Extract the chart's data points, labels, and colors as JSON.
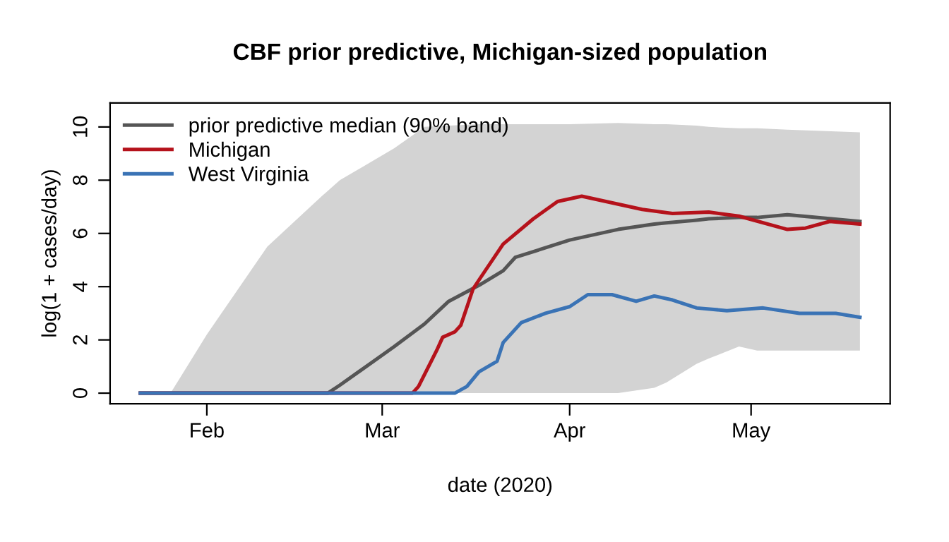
{
  "chart_data": {
    "type": "line",
    "title": "CBF prior predictive, Michigan-sized population",
    "xlabel": "date (2020)",
    "ylabel": "log(1 + cases/day)",
    "xlim": [
      "2020-01-16",
      "2020-05-24"
    ],
    "xticks": [
      {
        "value": "2020-02-01",
        "label": "Feb"
      },
      {
        "value": "2020-03-01",
        "label": "Mar"
      },
      {
        "value": "2020-04-01",
        "label": "Apr"
      },
      {
        "value": "2020-05-01",
        "label": "May"
      }
    ],
    "ylim": [
      -0.4,
      10.9
    ],
    "yticks": [
      0,
      2,
      4,
      6,
      8,
      10
    ],
    "grid": false,
    "legend": "top left",
    "series": [
      {
        "name": "prior predictive median (90% band)",
        "color": "#555555",
        "x": [
          "2020-01-21",
          "2020-01-26",
          "2020-02-01",
          "2020-02-11",
          "2020-02-20",
          "2020-02-21",
          "2020-02-23",
          "2020-03-03",
          "2020-03-08",
          "2020-03-12",
          "2020-03-17",
          "2020-03-21",
          "2020-03-23",
          "2020-04-01",
          "2020-04-09",
          "2020-04-15",
          "2020-04-17",
          "2020-04-22",
          "2020-04-24",
          "2020-04-29",
          "2020-05-02",
          "2020-05-07",
          "2020-05-19"
        ],
        "values": [
          0,
          0,
          0,
          0,
          0,
          0,
          0.3,
          1.75,
          2.6,
          3.45,
          4.05,
          4.6,
          5.1,
          5.75,
          6.15,
          6.35,
          6.4,
          6.5,
          6.55,
          6.6,
          6.6,
          6.7,
          6.45
        ],
        "lower": [
          0,
          0,
          0,
          0,
          0,
          0,
          0,
          0,
          0,
          0,
          0,
          0,
          0,
          0,
          0,
          0.2,
          0.4,
          1.1,
          1.3,
          1.75,
          1.6,
          1.6,
          1.6
        ],
        "upper": [
          0,
          0,
          2.2,
          5.5,
          7.4,
          7.6,
          8.0,
          9.2,
          10.0,
          10.05,
          10.1,
          10.1,
          10.1,
          10.1,
          10.15,
          10.1,
          10.1,
          10.05,
          10.0,
          9.95,
          9.95,
          9.9,
          9.8
        ]
      },
      {
        "name": "Michigan",
        "color": "#b5121b",
        "x": [
          "2020-01-21",
          "2020-03-06",
          "2020-03-07",
          "2020-03-10",
          "2020-03-11",
          "2020-03-13",
          "2020-03-14",
          "2020-03-16",
          "2020-03-17",
          "2020-03-21",
          "2020-03-26",
          "2020-03-30",
          "2020-04-03",
          "2020-04-09",
          "2020-04-13",
          "2020-04-18",
          "2020-04-24",
          "2020-04-29",
          "2020-05-07",
          "2020-05-10",
          "2020-05-14",
          "2020-05-19"
        ],
        "values": [
          0,
          0,
          0.25,
          1.6,
          2.1,
          2.3,
          2.55,
          3.9,
          4.25,
          5.6,
          6.55,
          7.2,
          7.4,
          7.1,
          6.9,
          6.75,
          6.8,
          6.65,
          6.15,
          6.2,
          6.45,
          6.35
        ]
      },
      {
        "name": "West Virginia",
        "color": "#3a73b5",
        "x": [
          "2020-01-21",
          "2020-03-13",
          "2020-03-15",
          "2020-03-17",
          "2020-03-20",
          "2020-03-21",
          "2020-03-24",
          "2020-03-28",
          "2020-04-01",
          "2020-04-04",
          "2020-04-08",
          "2020-04-12",
          "2020-04-15",
          "2020-04-18",
          "2020-04-22",
          "2020-04-27",
          "2020-05-03",
          "2020-05-09",
          "2020-05-15",
          "2020-05-19"
        ],
        "values": [
          0,
          0,
          0.25,
          0.8,
          1.2,
          1.9,
          2.65,
          3.0,
          3.25,
          3.7,
          3.7,
          3.45,
          3.65,
          3.5,
          3.2,
          3.1,
          3.2,
          3.0,
          3.0,
          2.85
        ]
      }
    ]
  }
}
